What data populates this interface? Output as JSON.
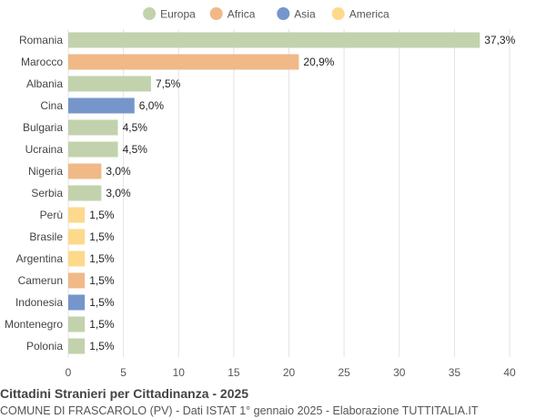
{
  "chart_data": {
    "type": "bar",
    "orientation": "horizontal",
    "title": "Cittadini Stranieri per Cittadinanza - 2025",
    "subtitle": "COMUNE DI FRASCAROLO (PV) - Dati ISTAT 1° gennaio 2025 - Elaborazione TUTTITALIA.IT",
    "legend": {
      "placement": "top-center",
      "entries": [
        {
          "name": "Europa",
          "color": "#c2d2ad"
        },
        {
          "name": "Africa",
          "color": "#f0b987"
        },
        {
          "name": "Asia",
          "color": "#7695cb"
        },
        {
          "name": "America",
          "color": "#fdd98b"
        }
      ]
    },
    "categories": [
      "Romania",
      "Marocco",
      "Albania",
      "Cina",
      "Bulgaria",
      "Ucraina",
      "Nigeria",
      "Serbia",
      "Perù",
      "Brasile",
      "Argentina",
      "Camerun",
      "Indonesia",
      "Montenegro",
      "Polonia"
    ],
    "values": [
      37.3,
      20.9,
      7.5,
      6.0,
      4.5,
      4.5,
      3.0,
      3.0,
      1.5,
      1.5,
      1.5,
      1.5,
      1.5,
      1.5,
      1.5
    ],
    "value_labels": [
      "37,3%",
      "20,9%",
      "7,5%",
      "6,0%",
      "4,5%",
      "4,5%",
      "3,0%",
      "3,0%",
      "1,5%",
      "1,5%",
      "1,5%",
      "1,5%",
      "1,5%",
      "1,5%",
      "1,5%"
    ],
    "groups": [
      "Europa",
      "Africa",
      "Europa",
      "Asia",
      "Europa",
      "Europa",
      "Africa",
      "Europa",
      "America",
      "America",
      "America",
      "Africa",
      "Asia",
      "Europa",
      "Europa"
    ],
    "xlim": [
      0,
      40
    ],
    "xticks": [
      0,
      5,
      10,
      15,
      20,
      25,
      30,
      35,
      40
    ],
    "grid": true
  }
}
